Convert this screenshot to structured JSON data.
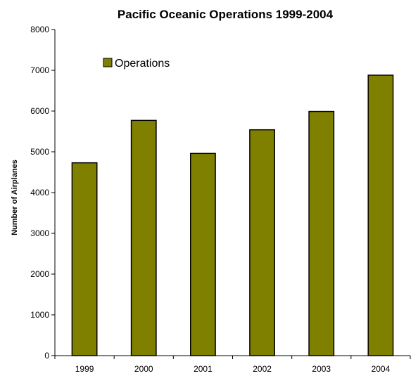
{
  "chart_data": {
    "type": "bar",
    "title": "Pacific Oceanic Operations 1999-2004",
    "xlabel": "",
    "ylabel": "Number of Airplanes",
    "categories": [
      "1999",
      "2000",
      "2001",
      "2002",
      "2003",
      "2004"
    ],
    "series": [
      {
        "name": "Operations",
        "values": [
          4730,
          5770,
          4960,
          5540,
          5990,
          6880
        ],
        "color": "#808000"
      }
    ],
    "ylim": [
      0,
      8000
    ],
    "yticks": [
      0,
      1000,
      2000,
      3000,
      4000,
      5000,
      6000,
      7000,
      8000
    ],
    "grid": false,
    "legend_position": "top-left"
  }
}
